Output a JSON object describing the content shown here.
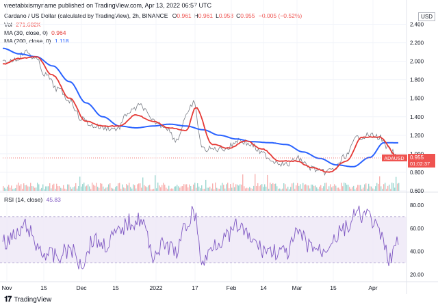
{
  "header": {
    "published": "weetabixismyname published on TradingView.com, Apr 13, 2022 06:57 UTC",
    "symbol": "Cardano / US Dollar (calculated by TradingView), 2h, BINANCE",
    "ohlc": [
      {
        "k": "O",
        "v": "0.961"
      },
      {
        "k": "H",
        "v": "0.961"
      },
      {
        "k": "L",
        "v": "0.953"
      },
      {
        "k": "C",
        "v": "0.955"
      }
    ],
    "change": "−0.005 (−0.52%)"
  },
  "legend": {
    "vol_label": "Vol",
    "vol_value": "271.682K",
    "ma30_label": "MA (30, close, 0)",
    "ma30_value": "0.964",
    "ma200_label": "MA (200, close, 0)",
    "ma200_value": "1.118"
  },
  "currency": "USD",
  "price_badge": {
    "symbol": "ADAUSD",
    "price": "0.955",
    "countdown": "01:02:37"
  },
  "rsi_legend": {
    "label": "RSI (14, close)",
    "value": "45.83"
  },
  "footer": {
    "brand": "TradingView"
  },
  "colors": {
    "up": "#26a69a",
    "down": "#ef5350",
    "ma30": "#e53935",
    "ma200": "#2962ff",
    "rsi": "#7e57c2",
    "rsi_band": "#ede7f6",
    "badge": "#ef5350"
  },
  "chart_data": [
    {
      "type": "line",
      "title": "Cardano / US Dollar (calculated by TradingView), 2h, BINANCE",
      "ylabel": "USD",
      "ylim": [
        0.6,
        2.5
      ],
      "y_ticks": [
        "2.400",
        "2.200",
        "2.000",
        "1.800",
        "1.600",
        "1.400",
        "1.200",
        "1.000",
        "0.800",
        "0.600"
      ],
      "x_ticks": [
        "Nov",
        "15",
        "Dec",
        "15",
        "2022",
        "17",
        "Feb",
        "14",
        "Mar",
        "15",
        "Apr"
      ],
      "last_price": 0.955,
      "series": [
        {
          "name": "ADAUSD",
          "x": [
            "Oct 29",
            "Nov 3",
            "Nov 8",
            "Nov 12",
            "Nov 16",
            "Nov 21",
            "Nov 26",
            "Dec 1",
            "Dec 6",
            "Dec 11",
            "Dec 16",
            "Dec 21",
            "Dec 26",
            "Dec 31",
            "Jan 5",
            "Jan 10",
            "Jan 14",
            "Jan 17",
            "Jan 21",
            "Jan 26",
            "Jan 31",
            "Feb 5",
            "Feb 10",
            "Feb 15",
            "Feb 20",
            "Feb 25",
            "Mar 2",
            "Mar 7",
            "Mar 12",
            "Mar 17",
            "Mar 22",
            "Mar 27",
            "Apr 1",
            "Apr 5",
            "Apr 9",
            "Apr 13"
          ],
          "values": [
            1.98,
            2.02,
            2.1,
            2.02,
            1.85,
            1.7,
            1.58,
            1.38,
            1.3,
            1.28,
            1.27,
            1.45,
            1.52,
            1.35,
            1.3,
            1.15,
            1.4,
            1.55,
            1.05,
            1.05,
            1.06,
            1.15,
            1.1,
            1.0,
            0.92,
            0.88,
            0.95,
            0.85,
            0.8,
            0.83,
            0.98,
            1.18,
            1.2,
            1.18,
            1.05,
            0.955
          ]
        },
        {
          "name": "MA (30, close, 0)",
          "x": [
            "Oct 29",
            "Nov 5",
            "Nov 12",
            "Nov 19",
            "Nov 26",
            "Dec 3",
            "Dec 10",
            "Dec 17",
            "Dec 24",
            "Dec 31",
            "Jan 7",
            "Jan 14",
            "Jan 18",
            "Jan 25",
            "Feb 1",
            "Feb 8",
            "Feb 15",
            "Feb 22",
            "Mar 1",
            "Mar 8",
            "Mar 15",
            "Mar 22",
            "Mar 29",
            "Apr 5",
            "Apr 13"
          ],
          "values": [
            1.97,
            2.03,
            2.05,
            1.85,
            1.6,
            1.35,
            1.3,
            1.3,
            1.42,
            1.35,
            1.28,
            1.25,
            1.5,
            1.1,
            1.06,
            1.14,
            1.05,
            0.92,
            0.92,
            0.85,
            0.8,
            0.92,
            1.18,
            1.18,
            0.964
          ]
        },
        {
          "name": "MA (200, close, 0)",
          "x": [
            "Oct 29",
            "Nov 5",
            "Nov 12",
            "Nov 19",
            "Nov 26",
            "Dec 3",
            "Dec 10",
            "Dec 17",
            "Dec 24",
            "Dec 31",
            "Jan 7",
            "Jan 14",
            "Jan 21",
            "Jan 28",
            "Feb 4",
            "Feb 11",
            "Feb 18",
            "Feb 25",
            "Mar 4",
            "Mar 11",
            "Mar 18",
            "Mar 25",
            "Apr 1",
            "Apr 7",
            "Apr 13"
          ],
          "values": [
            2.14,
            2.08,
            2.05,
            1.95,
            1.78,
            1.55,
            1.4,
            1.3,
            1.28,
            1.3,
            1.32,
            1.3,
            1.26,
            1.2,
            1.16,
            1.13,
            1.12,
            1.1,
            1.02,
            0.95,
            0.88,
            0.86,
            0.96,
            1.12,
            1.118
          ]
        }
      ]
    },
    {
      "type": "line",
      "title": "RSI (14, close)",
      "ylim": [
        15,
        90
      ],
      "y_ticks": [
        "80.00",
        "60.00",
        "40.00",
        "20.00"
      ],
      "bands": [
        70,
        30
      ],
      "series": [
        {
          "name": "RSI (14, close)",
          "x": [
            "Oct 29",
            "Nov 3",
            "Nov 8",
            "Nov 12",
            "Nov 16",
            "Nov 21",
            "Nov 26",
            "Dec 1",
            "Dec 6",
            "Dec 11",
            "Dec 16",
            "Dec 21",
            "Dec 26",
            "Dec 31",
            "Jan 5",
            "Jan 10",
            "Jan 14",
            "Jan 17",
            "Jan 21",
            "Jan 26",
            "Jan 31",
            "Feb 5",
            "Feb 10",
            "Feb 15",
            "Feb 20",
            "Feb 25",
            "Mar 2",
            "Mar 7",
            "Mar 12",
            "Mar 17",
            "Mar 22",
            "Mar 27",
            "Apr 1",
            "Apr 5",
            "Apr 9",
            "Apr 13"
          ],
          "values": [
            48,
            52,
            62,
            45,
            38,
            35,
            42,
            30,
            50,
            46,
            55,
            65,
            68,
            38,
            45,
            40,
            62,
            75,
            30,
            48,
            52,
            62,
            50,
            42,
            40,
            38,
            55,
            45,
            40,
            52,
            60,
            72,
            70,
            55,
            35,
            45.83
          ]
        }
      ]
    }
  ]
}
